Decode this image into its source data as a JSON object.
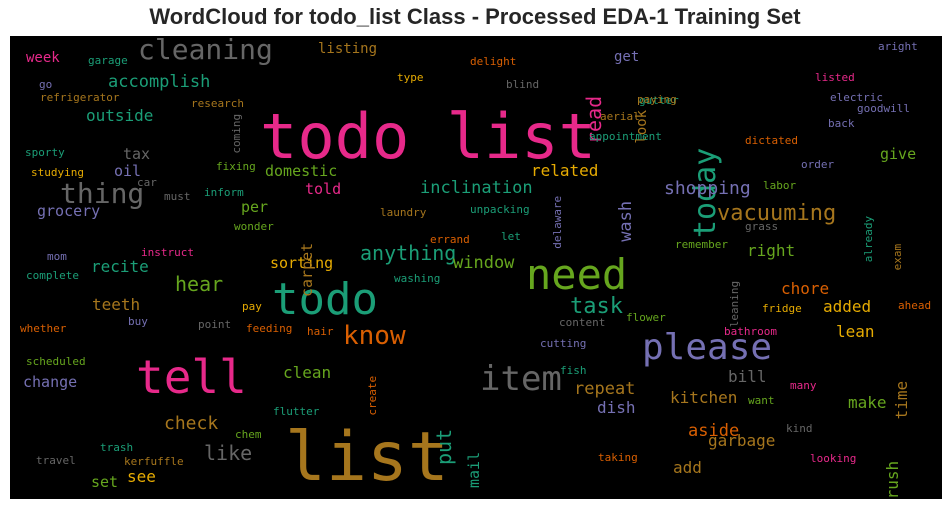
{
  "chart_data": {
    "type": "wordcloud",
    "title": "WordCloud for todo_list Class - Processed EDA-1 Training Set",
    "background": "#000000",
    "colormap": "Dark2",
    "words": [
      {
        "text": "todo list",
        "color": "#e7298a"
      },
      {
        "text": "list",
        "color": "#a6761d"
      },
      {
        "text": "todo",
        "color": "#1b9e77"
      },
      {
        "text": "need",
        "color": "#66a61e"
      },
      {
        "text": "tell",
        "color": "#e7298a"
      },
      {
        "text": "please",
        "color": "#7570b3"
      },
      {
        "text": "item",
        "color": "#666666"
      },
      {
        "text": "cleaning",
        "color": "#666666"
      },
      {
        "text": "thing",
        "color": "#666666"
      },
      {
        "text": "today",
        "color": "#1b9e77"
      },
      {
        "text": "know",
        "color": "#d95f02"
      },
      {
        "text": "vacuuming",
        "color": "#a6761d"
      },
      {
        "text": "task",
        "color": "#1b9e77"
      },
      {
        "text": "anything",
        "color": "#1b9e77"
      },
      {
        "text": "read",
        "color": "#e7298a"
      },
      {
        "text": "put",
        "color": "#1b9e77"
      },
      {
        "text": "shopping",
        "color": "#7570b3"
      },
      {
        "text": "inclination",
        "color": "#1b9e77"
      },
      {
        "text": "accomplish",
        "color": "#1b9e77"
      },
      {
        "text": "hear",
        "color": "#66a61e"
      },
      {
        "text": "check",
        "color": "#a6761d"
      },
      {
        "text": "like",
        "color": "#666666"
      },
      {
        "text": "repeat",
        "color": "#a6761d"
      },
      {
        "text": "kitchen",
        "color": "#a6761d"
      },
      {
        "text": "garbage",
        "color": "#a6761d"
      },
      {
        "text": "window",
        "color": "#66a61e"
      },
      {
        "text": "related",
        "color": "#e6ab02"
      },
      {
        "text": "wash",
        "color": "#7570b3"
      },
      {
        "text": "outside",
        "color": "#1b9e77"
      },
      {
        "text": "grocery",
        "color": "#7570b3"
      },
      {
        "text": "recite",
        "color": "#1b9e77"
      },
      {
        "text": "teeth",
        "color": "#a6761d"
      },
      {
        "text": "chore",
        "color": "#d95f02"
      },
      {
        "text": "added",
        "color": "#e6ab02"
      },
      {
        "text": "lean",
        "color": "#e6ab02"
      },
      {
        "text": "aside",
        "color": "#d95f02"
      },
      {
        "text": "make",
        "color": "#66a61e"
      },
      {
        "text": "brush",
        "color": "#66a61e"
      },
      {
        "text": "time",
        "color": "#a6761d"
      },
      {
        "text": "give",
        "color": "#66a61e"
      },
      {
        "text": "right",
        "color": "#66a61e"
      },
      {
        "text": "dish",
        "color": "#7570b3"
      },
      {
        "text": "add",
        "color": "#a6761d"
      },
      {
        "text": "bill",
        "color": "#666666"
      },
      {
        "text": "clean",
        "color": "#66a61e"
      },
      {
        "text": "sorting",
        "color": "#e6ab02"
      },
      {
        "text": "domestic",
        "color": "#66a61e"
      },
      {
        "text": "carpet",
        "color": "#a6761d"
      },
      {
        "text": "per",
        "color": "#66a61e"
      },
      {
        "text": "told",
        "color": "#e7298a"
      },
      {
        "text": "mail",
        "color": "#1b9e77"
      },
      {
        "text": "see",
        "color": "#e6ab02"
      },
      {
        "text": "set",
        "color": "#66a61e"
      },
      {
        "text": "change",
        "color": "#7570b3"
      },
      {
        "text": "tax",
        "color": "#666666"
      },
      {
        "text": "oil",
        "color": "#7570b3"
      },
      {
        "text": "week",
        "color": "#e7298a"
      },
      {
        "text": "get",
        "color": "#7570b3"
      },
      {
        "text": "look",
        "color": "#a6761d"
      },
      {
        "text": "listing",
        "color": "#a6761d"
      },
      {
        "text": "garage",
        "color": "#1b9e77"
      },
      {
        "text": "go",
        "color": "#7570b3"
      },
      {
        "text": "refrigerator",
        "color": "#a6761d"
      },
      {
        "text": "delight",
        "color": "#d95f02"
      },
      {
        "text": "type",
        "color": "#e6ab02"
      },
      {
        "text": "blind",
        "color": "#666666"
      },
      {
        "text": "gutter",
        "color": "#1b9e77"
      },
      {
        "text": "paying",
        "color": "#a6761d"
      },
      {
        "text": "aerial",
        "color": "#a6761d"
      },
      {
        "text": "appointment",
        "color": "#1b9e77"
      },
      {
        "text": "dictated",
        "color": "#d95f02"
      },
      {
        "text": "research",
        "color": "#a6761d"
      },
      {
        "text": "coming",
        "color": "#666666"
      },
      {
        "text": "aright",
        "color": "#7570b3"
      },
      {
        "text": "listed",
        "color": "#e7298a"
      },
      {
        "text": "electric",
        "color": "#7570b3"
      },
      {
        "text": "goodwill",
        "color": "#7570b3"
      },
      {
        "text": "back",
        "color": "#7570b3"
      },
      {
        "text": "order",
        "color": "#7570b3"
      },
      {
        "text": "labor",
        "color": "#66a61e"
      },
      {
        "text": "already",
        "color": "#1b9e77"
      },
      {
        "text": "grass",
        "color": "#666666"
      },
      {
        "text": "exam",
        "color": "#a6761d"
      },
      {
        "text": "remember",
        "color": "#66a61e"
      },
      {
        "text": "leaning",
        "color": "#666666"
      },
      {
        "text": "fridge",
        "color": "#e6ab02"
      },
      {
        "text": "ahead",
        "color": "#d95f02"
      },
      {
        "text": "bathroom",
        "color": "#e7298a"
      },
      {
        "text": "flower",
        "color": "#66a61e"
      },
      {
        "text": "content",
        "color": "#666666"
      },
      {
        "text": "cutting",
        "color": "#7570b3"
      },
      {
        "text": "fish",
        "color": "#1b9e77"
      },
      {
        "text": "many",
        "color": "#e7298a"
      },
      {
        "text": "want",
        "color": "#66a61e"
      },
      {
        "text": "kind",
        "color": "#666666"
      },
      {
        "text": "looking",
        "color": "#e7298a"
      },
      {
        "text": "taking",
        "color": "#d95f02"
      },
      {
        "text": "sporty",
        "color": "#1b9e77"
      },
      {
        "text": "studying",
        "color": "#e6ab02"
      },
      {
        "text": "car",
        "color": "#666666"
      },
      {
        "text": "must",
        "color": "#666666"
      },
      {
        "text": "fixing",
        "color": "#66a61e"
      },
      {
        "text": "inform",
        "color": "#1b9e77"
      },
      {
        "text": "wonder",
        "color": "#66a61e"
      },
      {
        "text": "laundry",
        "color": "#a6761d"
      },
      {
        "text": "unpacking",
        "color": "#1b9e77"
      },
      {
        "text": "delaware",
        "color": "#7570b3"
      },
      {
        "text": "errand",
        "color": "#d95f02"
      },
      {
        "text": "let",
        "color": "#1b9e77"
      },
      {
        "text": "washing",
        "color": "#1b9e77"
      },
      {
        "text": "mom",
        "color": "#7570b3"
      },
      {
        "text": "instruct",
        "color": "#e7298a"
      },
      {
        "text": "complete",
        "color": "#1b9e77"
      },
      {
        "text": "whether",
        "color": "#d95f02"
      },
      {
        "text": "buy",
        "color": "#7570b3"
      },
      {
        "text": "point",
        "color": "#666666"
      },
      {
        "text": "pay",
        "color": "#e6ab02"
      },
      {
        "text": "feeding",
        "color": "#d95f02"
      },
      {
        "text": "hair",
        "color": "#d95f02"
      },
      {
        "text": "scheduled",
        "color": "#66a61e"
      },
      {
        "text": "create",
        "color": "#d95f02"
      },
      {
        "text": "flutter",
        "color": "#1b9e77"
      },
      {
        "text": "chem",
        "color": "#66a61e"
      },
      {
        "text": "trash",
        "color": "#1b9e77"
      },
      {
        "text": "travel",
        "color": "#666666"
      },
      {
        "text": "kerfuffle",
        "color": "#a6761d"
      }
    ]
  }
}
